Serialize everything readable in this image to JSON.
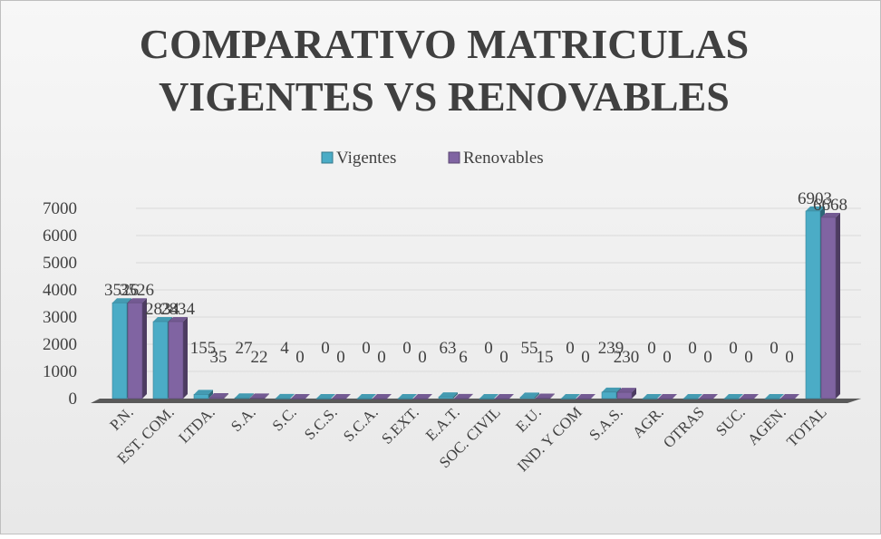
{
  "chart_data": {
    "type": "bar",
    "title": [
      "COMPARATIVO MATRICULAS",
      "VIGENTES VS RENOVABLES"
    ],
    "categories": [
      "P.N.",
      "EST. COM.",
      "LTDA.",
      "S.A.",
      "S.C.",
      "S.C.S.",
      "S.C.A.",
      "S.EXT.",
      "E.A.T.",
      "SOC. CIVIL",
      "E.U.",
      "IND. Y COM",
      "S.A.S.",
      "AGR.",
      "OTRAS",
      "SUC.",
      "AGEN.",
      "TOTAL"
    ],
    "series": [
      {
        "name": "Vigentes",
        "color": "#4bacc6",
        "values": [
          3526,
          2834,
          155,
          27,
          4,
          0,
          0,
          0,
          63,
          0,
          55,
          0,
          239,
          0,
          0,
          0,
          0,
          6903
        ]
      },
      {
        "name": "Renovables",
        "color": "#8064a2",
        "values": [
          3526,
          2834,
          35,
          22,
          0,
          0,
          0,
          0,
          6,
          0,
          15,
          0,
          230,
          0,
          0,
          0,
          0,
          6668
        ]
      }
    ],
    "ylim": [
      0,
      7000
    ],
    "yticks": [
      0,
      1000,
      2000,
      3000,
      4000,
      5000,
      6000,
      7000
    ],
    "grid": true,
    "legend": "top"
  }
}
